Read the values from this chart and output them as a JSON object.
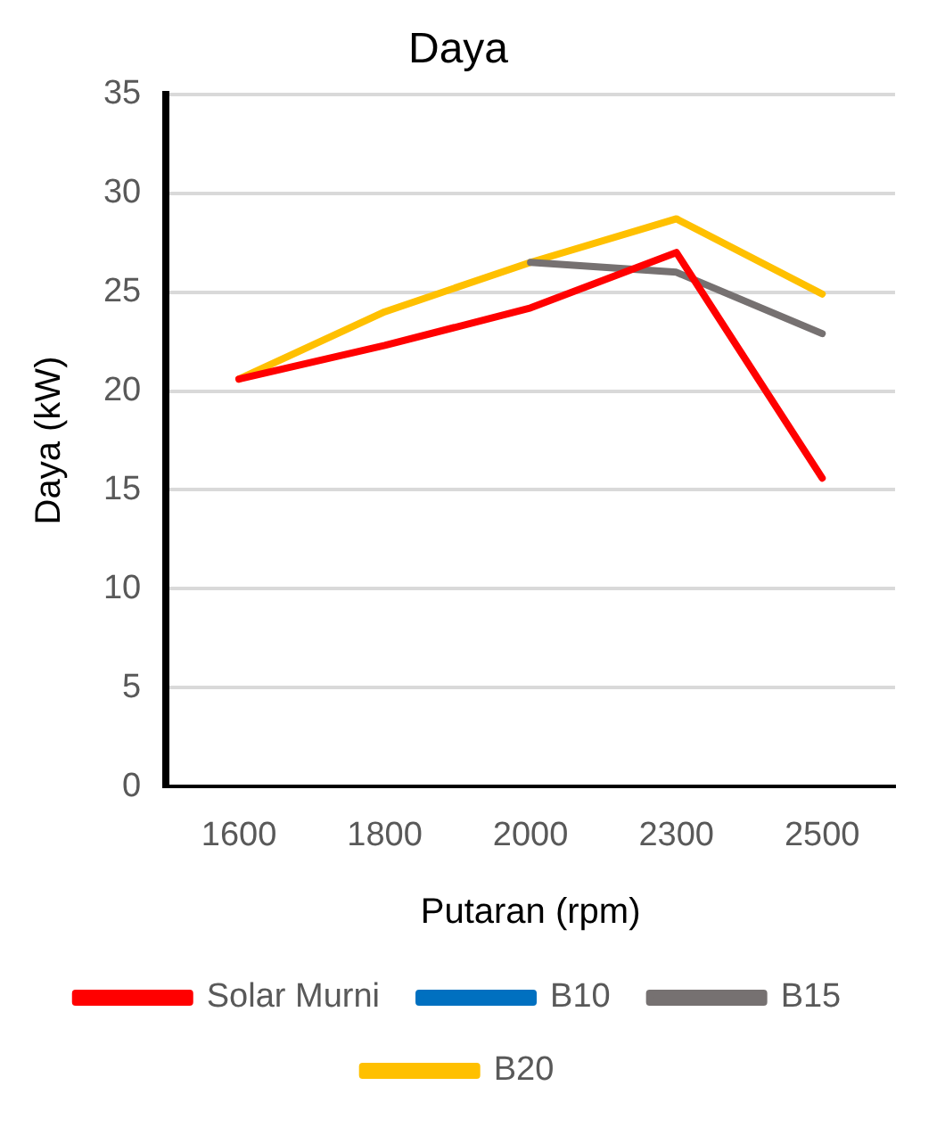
{
  "chart_data": {
    "type": "line",
    "title": "Daya",
    "xlabel": "Putaran (rpm)",
    "ylabel": "Daya (kW)",
    "categories": [
      "1600",
      "1800",
      "2000",
      "2300",
      "2500"
    ],
    "series": [
      {
        "name": "Solar Murni",
        "color": "#ff0000",
        "values": [
          20.6,
          22.3,
          24.2,
          27.0,
          15.6
        ]
      },
      {
        "name": "B10",
        "color": "#0070c0",
        "values": [
          null,
          null,
          null,
          null,
          null
        ]
      },
      {
        "name": "B15",
        "color": "#767171",
        "values": [
          null,
          null,
          26.5,
          26.0,
          22.9
        ]
      },
      {
        "name": "B20",
        "color": "#ffc000",
        "values": [
          20.6,
          24.0,
          26.5,
          28.7,
          24.9
        ]
      }
    ],
    "ylim": [
      0,
      35
    ],
    "yticks": [
      0,
      5,
      10,
      15,
      20,
      25,
      30,
      35
    ],
    "grid": "y",
    "legend": "bottom",
    "marker": "none",
    "line_style": "solid"
  }
}
